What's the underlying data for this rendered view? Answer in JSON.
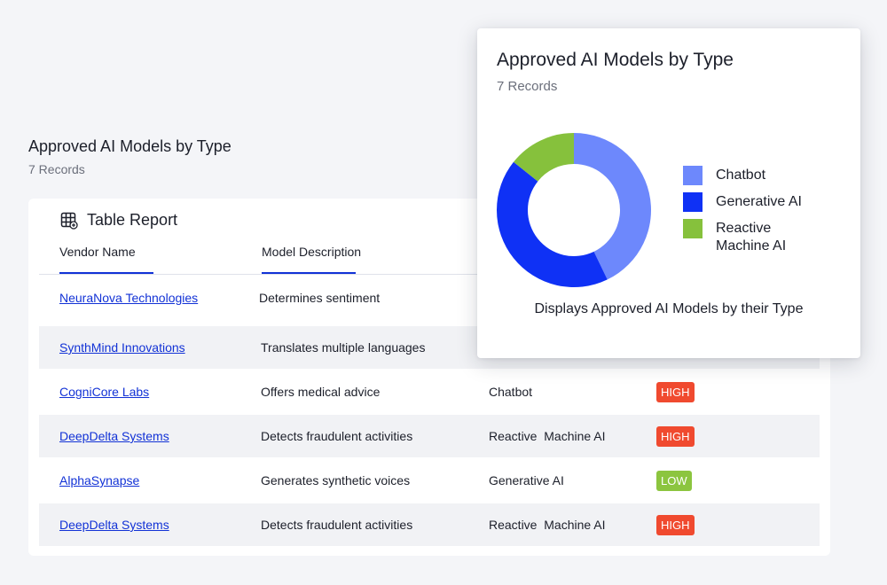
{
  "background_report": {
    "title": "Approved AI Models by Type",
    "subtitle": "7 Records"
  },
  "table": {
    "title": "Table Report",
    "icon": "table-grid-icon",
    "accent_color": "#1232d6",
    "columns": [
      "Vendor Name",
      "Model Description"
    ],
    "rows": [
      {
        "vendor": "NeuraNova Technologies",
        "description": "Determines sentiment",
        "type": "",
        "risk": ""
      },
      {
        "vendor": "SynthMind Innovations",
        "description": "Translates multiple languages",
        "type": "",
        "risk": ""
      },
      {
        "vendor": "CogniCore Labs",
        "description": "Offers medical advice",
        "type": "Chatbot",
        "risk": "HIGH"
      },
      {
        "vendor": "DeepDelta Systems",
        "description": "Detects fraudulent activities",
        "type": "Reactive  Machine AI",
        "risk": "HIGH"
      },
      {
        "vendor": "AlphaSynapse",
        "description": "Generates synthetic voices",
        "type": "Generative AI",
        "risk": "LOW"
      },
      {
        "vendor": "DeepDelta Systems",
        "description": "Detects fraudulent activities",
        "type": "Reactive  Machine AI",
        "risk": "HIGH"
      }
    ],
    "risk_colors": {
      "HIGH": "#f04a2f",
      "LOW": "#8cc53f"
    }
  },
  "chart_card": {
    "title": "Approved AI Models by Type",
    "subtitle": "7 Records",
    "caption": "Displays Approved AI Models by their Type"
  },
  "chart_data": {
    "type": "pie",
    "variant": "donut",
    "title": "Approved AI Models by Type",
    "subtitle": "7 Records",
    "categories": [
      "Chatbot",
      "Generative AI",
      "Reactive Machine AI"
    ],
    "legend_labels": [
      "Chatbot",
      "Generative AI",
      "Reactive\nMachine AI"
    ],
    "values": [
      3,
      3,
      1
    ],
    "colors": [
      "#6d88fc",
      "#0f31f5",
      "#86c13c"
    ],
    "legend": "right"
  }
}
